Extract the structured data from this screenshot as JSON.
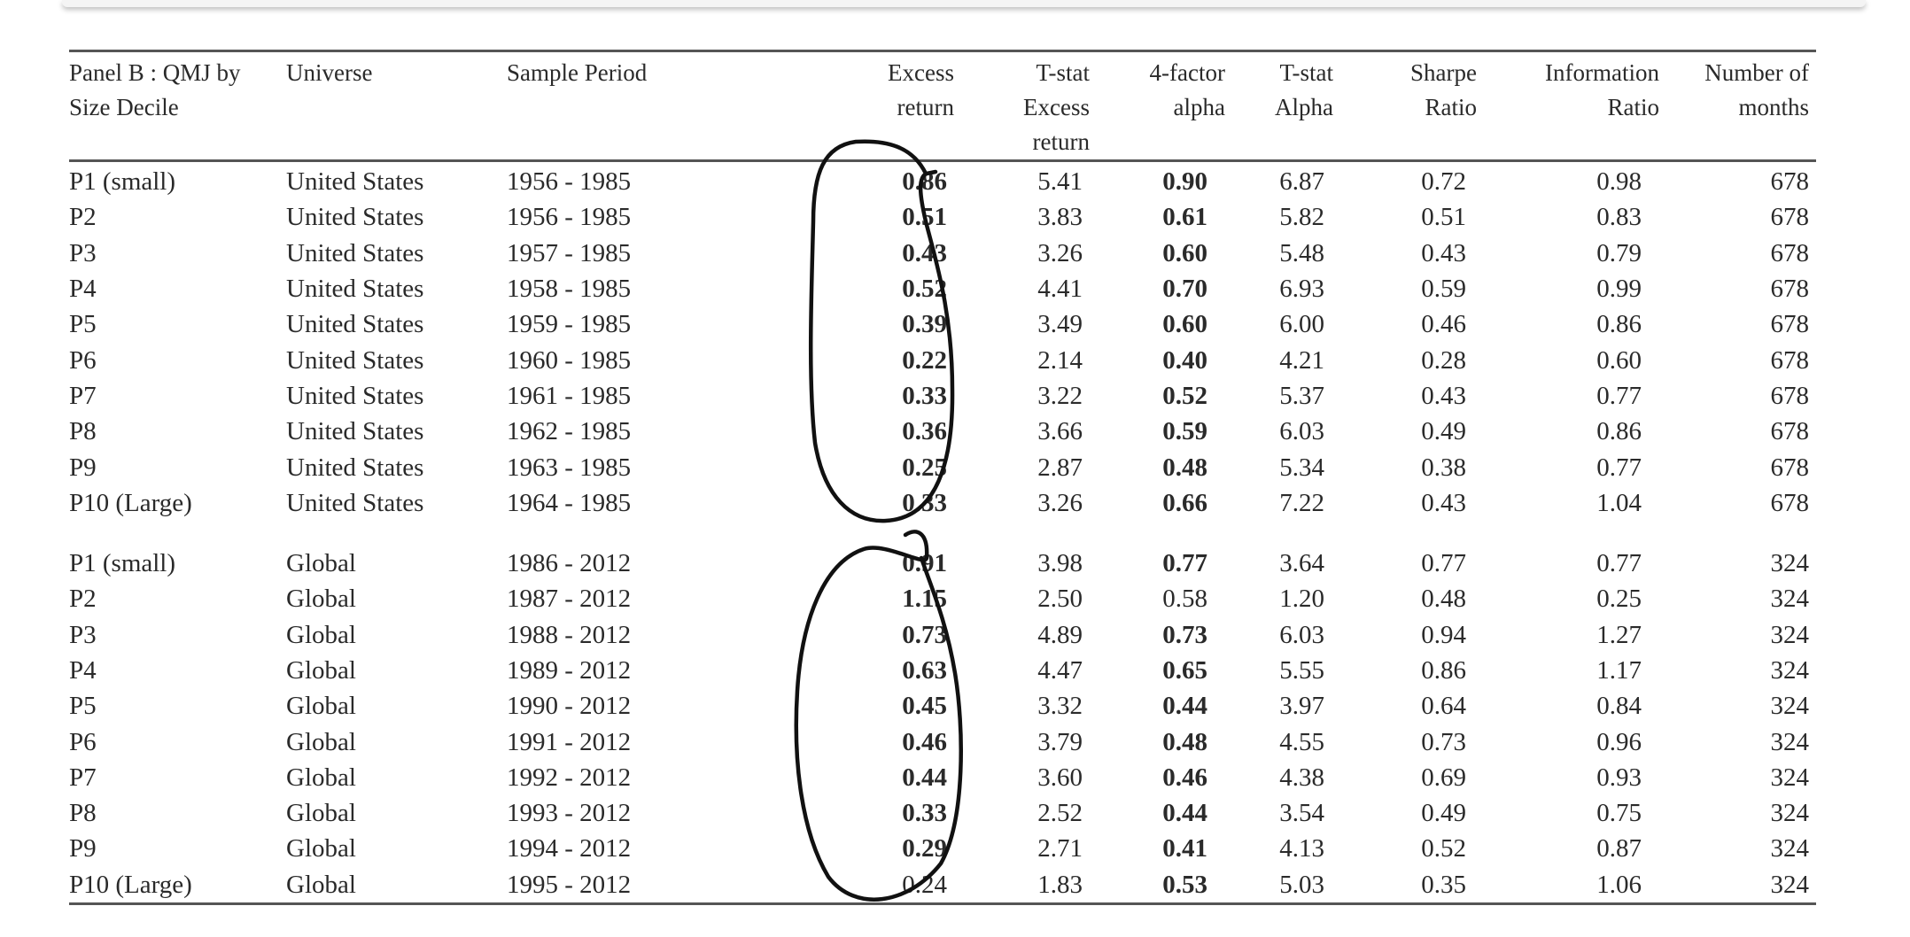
{
  "table": {
    "headers": [
      [
        "Panel B : QMJ by",
        "Size Decile"
      ],
      [
        "Universe"
      ],
      [
        "Sample Period"
      ],
      [
        "Excess",
        "return"
      ],
      [
        "T-stat",
        "Excess",
        "return"
      ],
      [
        "4-factor",
        "alpha"
      ],
      [
        "T-stat",
        "Alpha"
      ],
      [
        "Sharpe",
        "Ratio"
      ],
      [
        "Information",
        "Ratio"
      ],
      [
        "Number of",
        "months"
      ]
    ],
    "us_rows": [
      [
        "P1 (small)",
        "United States",
        "1956 - 1985",
        "0.86",
        "5.41",
        "0.90",
        "6.87",
        "0.72",
        "0.98",
        "678"
      ],
      [
        "P2",
        "United States",
        "1956 - 1985",
        "0.51",
        "3.83",
        "0.61",
        "5.82",
        "0.51",
        "0.83",
        "678"
      ],
      [
        "P3",
        "United States",
        "1957 - 1985",
        "0.43",
        "3.26",
        "0.60",
        "5.48",
        "0.43",
        "0.79",
        "678"
      ],
      [
        "P4",
        "United States",
        "1958 - 1985",
        "0.52",
        "4.41",
        "0.70",
        "6.93",
        "0.59",
        "0.99",
        "678"
      ],
      [
        "P5",
        "United States",
        "1959 - 1985",
        "0.39",
        "3.49",
        "0.60",
        "6.00",
        "0.46",
        "0.86",
        "678"
      ],
      [
        "P6",
        "United States",
        "1960 - 1985",
        "0.22",
        "2.14",
        "0.40",
        "4.21",
        "0.28",
        "0.60",
        "678"
      ],
      [
        "P7",
        "United States",
        "1961 - 1985",
        "0.33",
        "3.22",
        "0.52",
        "5.37",
        "0.43",
        "0.77",
        "678"
      ],
      [
        "P8",
        "United States",
        "1962 - 1985",
        "0.36",
        "3.66",
        "0.59",
        "6.03",
        "0.49",
        "0.86",
        "678"
      ],
      [
        "P9",
        "United States",
        "1963 - 1985",
        "0.25",
        "2.87",
        "0.48",
        "5.34",
        "0.38",
        "0.77",
        "678"
      ],
      [
        "P10 (Large)",
        "United States",
        "1964 - 1985",
        "0.33",
        "3.26",
        "0.66",
        "7.22",
        "0.43",
        "1.04",
        "678"
      ]
    ],
    "global_rows": [
      [
        "P1 (small)",
        "Global",
        "1986 - 2012",
        "0.91",
        "3.98",
        "0.77",
        "3.64",
        "0.77",
        "0.77",
        "324"
      ],
      [
        "P2",
        "Global",
        "1987 - 2012",
        "1.15",
        "2.50",
        "0.58",
        "1.20",
        "0.48",
        "0.25",
        "324"
      ],
      [
        "P3",
        "Global",
        "1988 - 2012",
        "0.73",
        "4.89",
        "0.73",
        "6.03",
        "0.94",
        "1.27",
        "324"
      ],
      [
        "P4",
        "Global",
        "1989 - 2012",
        "0.63",
        "4.47",
        "0.65",
        "5.55",
        "0.86",
        "1.17",
        "324"
      ],
      [
        "P5",
        "Global",
        "1990 - 2012",
        "0.45",
        "3.32",
        "0.44",
        "3.97",
        "0.64",
        "0.84",
        "324"
      ],
      [
        "P6",
        "Global",
        "1991 - 2012",
        "0.46",
        "3.79",
        "0.48",
        "4.55",
        "0.73",
        "0.96",
        "324"
      ],
      [
        "P7",
        "Global",
        "1992 - 2012",
        "0.44",
        "3.60",
        "0.46",
        "4.38",
        "0.69",
        "0.93",
        "324"
      ],
      [
        "P8",
        "Global",
        "1993 - 2012",
        "0.33",
        "2.52",
        "0.44",
        "3.54",
        "0.49",
        "0.75",
        "324"
      ],
      [
        "P9",
        "Global",
        "1994 - 2012",
        "0.29",
        "2.71",
        "0.41",
        "4.13",
        "0.52",
        "0.87",
        "324"
      ],
      [
        "P10 (Large)",
        "Global",
        "1995 - 2012",
        "0.24",
        "1.83",
        "0.53",
        "5.03",
        "0.35",
        "1.06",
        "324"
      ]
    ],
    "bold_excess_us": [
      true,
      true,
      true,
      true,
      true,
      true,
      true,
      true,
      true,
      true
    ],
    "bold_alpha_us": [
      true,
      true,
      true,
      true,
      true,
      true,
      true,
      true,
      true,
      true
    ],
    "bold_excess_global": [
      true,
      true,
      true,
      true,
      true,
      true,
      true,
      true,
      true,
      false
    ],
    "bold_alpha_global": [
      true,
      false,
      true,
      true,
      true,
      true,
      true,
      true,
      true,
      true
    ]
  },
  "annotations": {
    "ink_color": "#111111",
    "circles": [
      "us-excess-return-circle",
      "global-excess-return-circle"
    ]
  }
}
